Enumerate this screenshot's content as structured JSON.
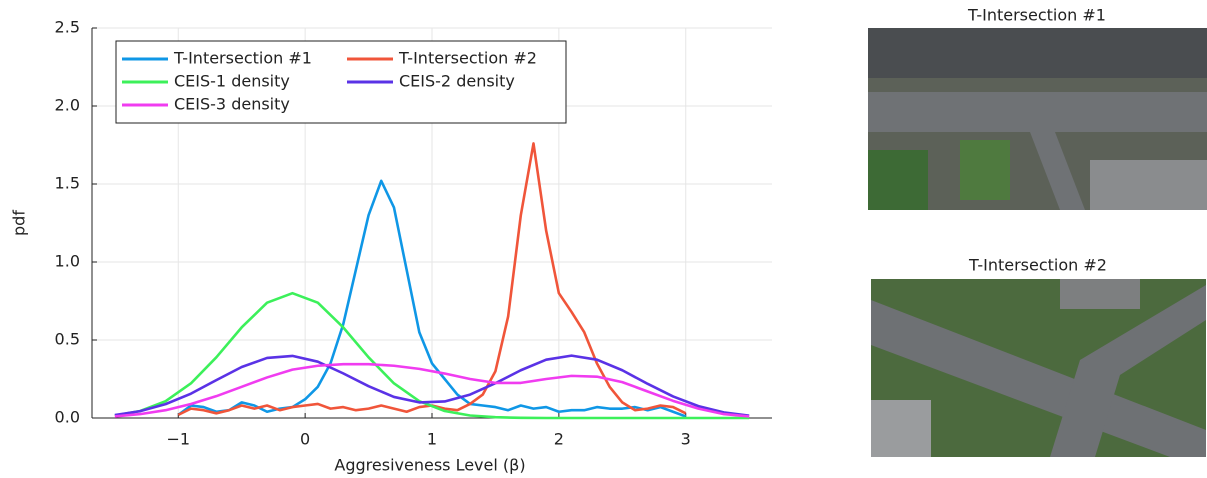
{
  "chart_data": {
    "type": "line",
    "xlabel": "Aggresiveness Level (β)",
    "ylabel": "pdf",
    "xlim": [
      -1.68,
      3.68
    ],
    "ylim": [
      0,
      2.5
    ],
    "xticks": [
      {
        "value": -1,
        "label": "−1"
      },
      0,
      1,
      2,
      3
    ],
    "yticks": [
      {
        "value": 0,
        "label": "0.0"
      },
      0.5,
      {
        "value": 1,
        "label": "1.0"
      },
      1.5,
      {
        "value": 2,
        "label": "2.0"
      },
      2.5
    ],
    "grid": true,
    "legend": "top-left",
    "series": [
      {
        "name": "T-Intersection #1",
        "color": "#0f97e6",
        "x": [
          -1.0,
          -0.9,
          -0.8,
          -0.7,
          -0.6,
          -0.5,
          -0.4,
          -0.3,
          -0.2,
          -0.1,
          0,
          0.1,
          0.2,
          0.3,
          0.4,
          0.5,
          0.6,
          0.7,
          0.8,
          0.9,
          1.0,
          1.1,
          1.2,
          1.3,
          1.4,
          1.5,
          1.6,
          1.7,
          1.8,
          1.9,
          2.0,
          2.1,
          2.2,
          2.3,
          2.4,
          2.5,
          2.6,
          2.7,
          2.8,
          2.9,
          3.0
        ],
        "values": [
          0.02,
          0.08,
          0.07,
          0.04,
          0.05,
          0.1,
          0.08,
          0.04,
          0.06,
          0.07,
          0.12,
          0.2,
          0.35,
          0.6,
          0.95,
          1.3,
          1.52,
          1.35,
          0.95,
          0.55,
          0.35,
          0.25,
          0.15,
          0.09,
          0.08,
          0.07,
          0.05,
          0.08,
          0.06,
          0.07,
          0.04,
          0.05,
          0.05,
          0.07,
          0.06,
          0.06,
          0.07,
          0.05,
          0.07,
          0.04,
          0.01
        ]
      },
      {
        "name": "T-Intersection #2",
        "color": "#f0553a",
        "x": [
          -1.0,
          -0.9,
          -0.8,
          -0.7,
          -0.6,
          -0.5,
          -0.4,
          -0.3,
          -0.2,
          -0.1,
          0,
          0.1,
          0.2,
          0.3,
          0.4,
          0.5,
          0.6,
          0.7,
          0.8,
          0.9,
          1.0,
          1.1,
          1.2,
          1.3,
          1.4,
          1.5,
          1.6,
          1.7,
          1.8,
          1.9,
          2.0,
          2.1,
          2.2,
          2.3,
          2.4,
          2.5,
          2.6,
          2.7,
          2.8,
          2.9,
          3.0
        ],
        "values": [
          0.02,
          0.06,
          0.05,
          0.03,
          0.05,
          0.08,
          0.06,
          0.08,
          0.05,
          0.07,
          0.08,
          0.09,
          0.06,
          0.07,
          0.05,
          0.06,
          0.08,
          0.06,
          0.04,
          0.07,
          0.08,
          0.06,
          0.05,
          0.09,
          0.15,
          0.3,
          0.65,
          1.3,
          1.76,
          1.2,
          0.8,
          0.68,
          0.55,
          0.35,
          0.2,
          0.1,
          0.05,
          0.06,
          0.08,
          0.07,
          0.03
        ]
      },
      {
        "name": "CEIS-1 density",
        "color": "#3cf05a",
        "x": [
          -1.5,
          -1.3,
          -1.1,
          -0.9,
          -0.7,
          -0.5,
          -0.3,
          -0.1,
          0.1,
          0.3,
          0.5,
          0.7,
          0.9,
          1.1,
          1.3,
          1.5,
          1.7,
          1.9,
          2.1,
          2.3,
          2.5,
          2.7,
          2.9,
          3.1,
          3.3,
          3.5
        ],
        "values": [
          0.016,
          0.045,
          0.108,
          0.222,
          0.389,
          0.581,
          0.739,
          0.8,
          0.739,
          0.581,
          0.389,
          0.222,
          0.108,
          0.045,
          0.016,
          0.005,
          0.001,
          0,
          0,
          0,
          0,
          0,
          0,
          0,
          0,
          0
        ]
      },
      {
        "name": "CEIS-2 density",
        "color": "#5a32e6",
        "x": [
          -1.5,
          -1.3,
          -1.1,
          -0.9,
          -0.7,
          -0.5,
          -0.3,
          -0.1,
          0.1,
          0.3,
          0.5,
          0.7,
          0.9,
          1.1,
          1.3,
          1.5,
          1.7,
          1.9,
          2.1,
          2.3,
          2.5,
          2.7,
          2.9,
          3.1,
          3.3,
          3.5
        ],
        "values": [
          0.019,
          0.044,
          0.089,
          0.156,
          0.243,
          0.327,
          0.385,
          0.398,
          0.361,
          0.286,
          0.204,
          0.135,
          0.1,
          0.106,
          0.15,
          0.223,
          0.306,
          0.374,
          0.4,
          0.374,
          0.306,
          0.219,
          0.138,
          0.076,
          0.036,
          0.015
        ]
      },
      {
        "name": "CEIS-3 density",
        "color": "#f03cf0",
        "x": [
          -1.5,
          -1.3,
          -1.1,
          -0.9,
          -0.7,
          -0.5,
          -0.3,
          -0.1,
          0.1,
          0.3,
          0.5,
          0.7,
          0.9,
          1.1,
          1.3,
          1.5,
          1.7,
          1.9,
          2.1,
          2.3,
          2.5,
          2.7,
          2.9,
          3.1,
          3.3,
          3.5
        ],
        "values": [
          0.01,
          0.025,
          0.05,
          0.09,
          0.14,
          0.2,
          0.26,
          0.31,
          0.335,
          0.345,
          0.345,
          0.335,
          0.315,
          0.285,
          0.25,
          0.225,
          0.225,
          0.25,
          0.27,
          0.265,
          0.23,
          0.17,
          0.11,
          0.06,
          0.025,
          0.01
        ]
      }
    ]
  },
  "images": [
    {
      "title": "T-Intersection #1"
    },
    {
      "title": "T-Intersection #2"
    }
  ]
}
